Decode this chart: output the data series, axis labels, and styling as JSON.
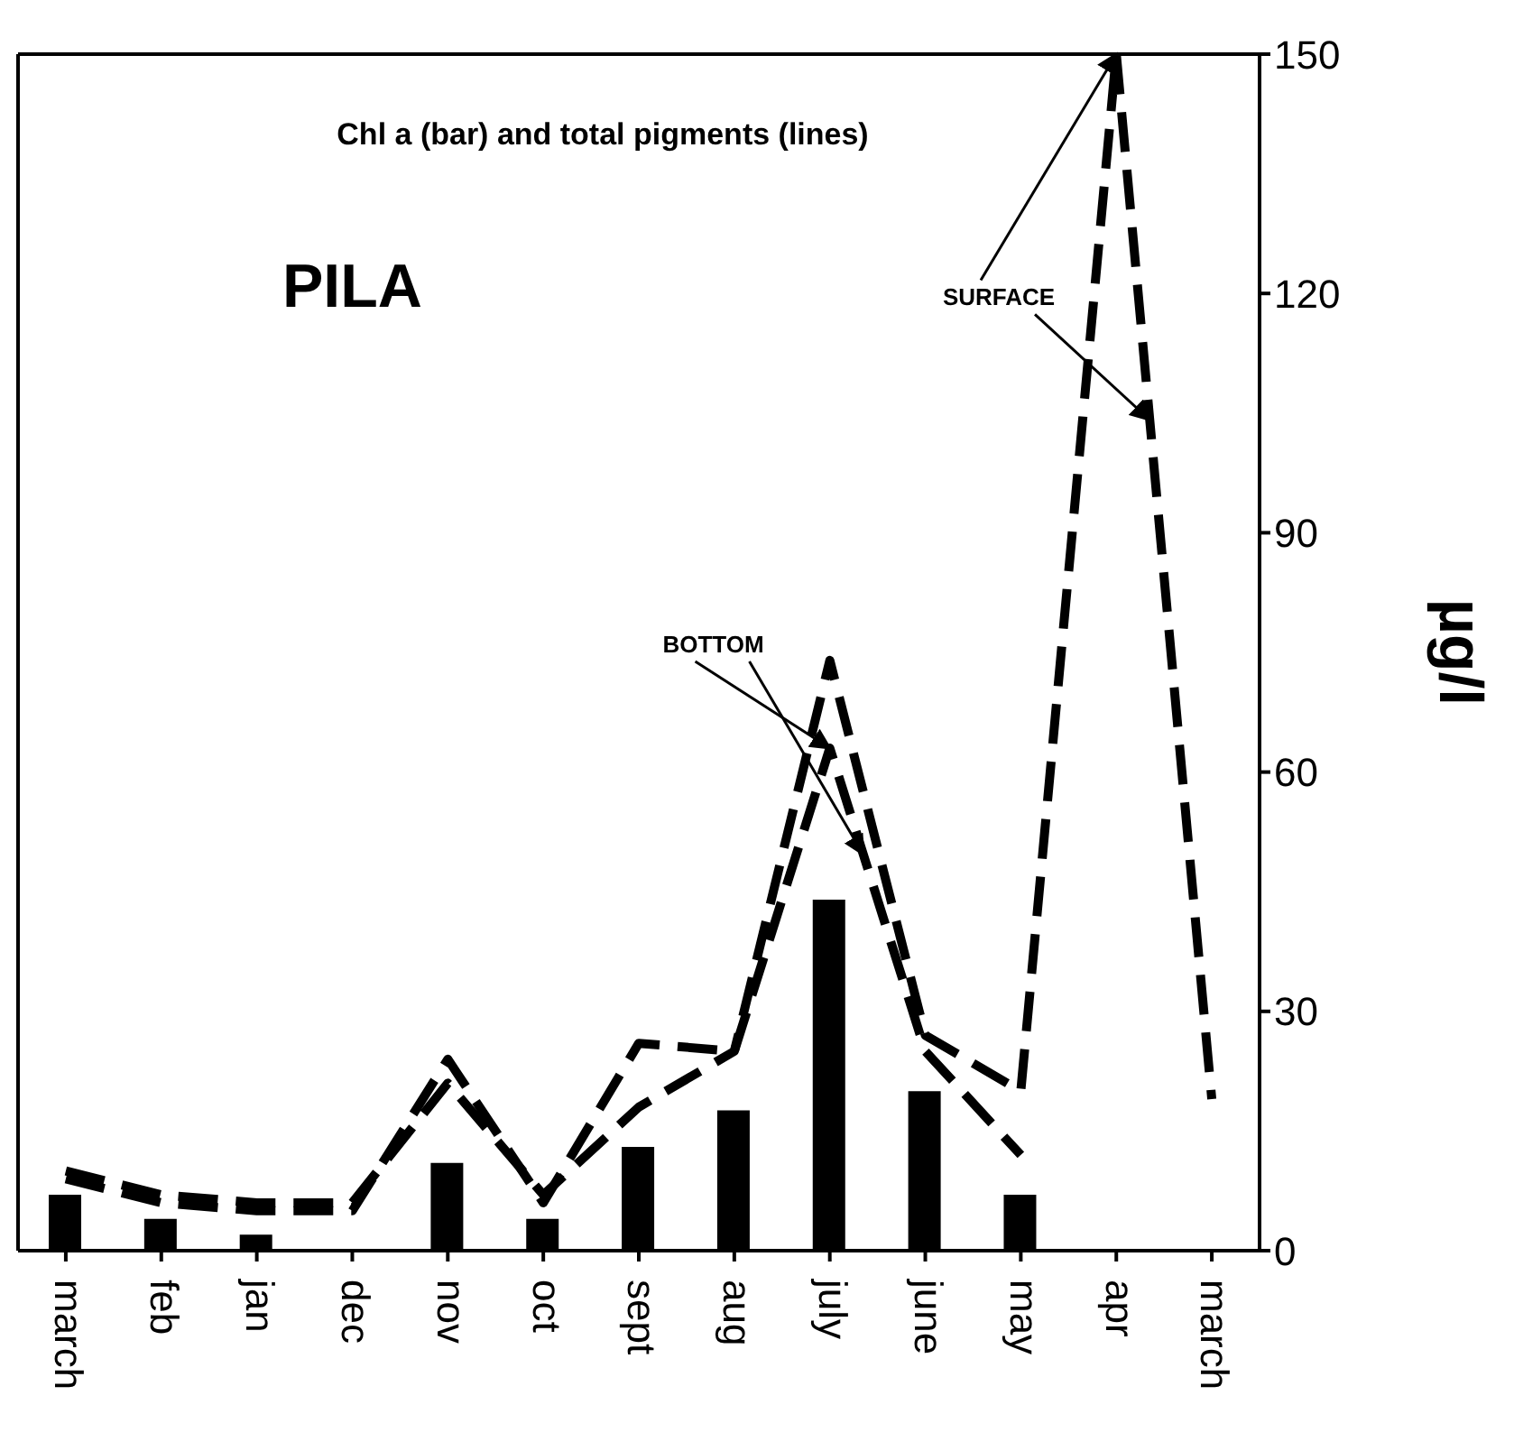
{
  "chart_data": {
    "type": "bar",
    "title": "Chl a (bar) and total pigments (lines)",
    "ylabel": "µg/l",
    "categories": [
      "march",
      "feb",
      "jan",
      "dec",
      "nov",
      "oct",
      "sept",
      "aug",
      "july",
      "june",
      "may",
      "apr",
      "march"
    ],
    "series": [
      {
        "color": "#000000",
        "values": [
          7,
          4,
          2,
          null,
          11,
          4,
          13,
          17.6,
          44,
          20,
          7,
          null,
          null
        ]
      },
      {
        "type": "line",
        "line_style": "dashed",
        "color": "#000000",
        "values": [
          10,
          7,
          6,
          6,
          21,
          7,
          18,
          25,
          74,
          27,
          20,
          150,
          19
        ]
      },
      {
        "type": "line",
        "line_style": "dashed",
        "color": "#000000",
        "values": [
          9,
          6,
          5,
          5,
          24,
          6,
          26,
          25,
          63,
          25,
          12,
          null,
          null
        ]
      }
    ],
    "ylim": [
      0,
      150
    ],
    "yticks": [
      0,
      30,
      60,
      90,
      120,
      150
    ],
    "marker": "none",
    "grid": false,
    "legend": false,
    "annotations": [
      "PILA",
      {
        "text": "SURFACE",
        "x": "apr",
        "y": 150
      },
      {
        "text": "BOTTOM",
        "x": "july",
        "y": 63
      }
    ]
  }
}
